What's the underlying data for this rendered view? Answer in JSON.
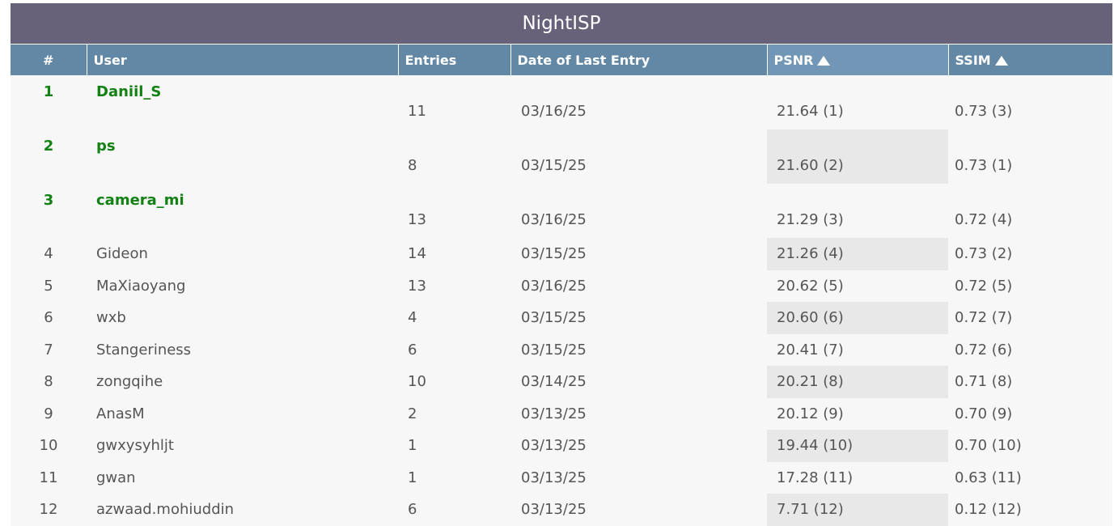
{
  "title": "NightISP",
  "columns": {
    "rank": "#",
    "user": "User",
    "entries": "Entries",
    "date": "Date of Last Entry",
    "psnr": "PSNR",
    "ssim": "SSIM"
  },
  "icons": {
    "sort_psnr": "sort-ascending-triangle-icon",
    "sort_ssim": "sort-ascending-triangle-icon"
  },
  "colors": {
    "title_bar": "#676179",
    "header": "#6388a6",
    "top_rank": "#138113"
  },
  "rows": [
    {
      "rank": "1",
      "user": "Daniil_S",
      "entries": "11",
      "date": "03/16/25",
      "psnr": "21.64 (1)",
      "ssim": "0.73 (3)"
    },
    {
      "rank": "2",
      "user": "ps",
      "entries": "8",
      "date": "03/15/25",
      "psnr": "21.60 (2)",
      "ssim": "0.73 (1)"
    },
    {
      "rank": "3",
      "user": "camera_mi",
      "entries": "13",
      "date": "03/16/25",
      "psnr": "21.29 (3)",
      "ssim": "0.72 (4)"
    },
    {
      "rank": "4",
      "user": "Gideon",
      "entries": "14",
      "date": "03/15/25",
      "psnr": "21.26 (4)",
      "ssim": "0.73 (2)"
    },
    {
      "rank": "5",
      "user": "MaXiaoyang",
      "entries": "13",
      "date": "03/16/25",
      "psnr": "20.62 (5)",
      "ssim": "0.72 (5)"
    },
    {
      "rank": "6",
      "user": "wxb",
      "entries": "4",
      "date": "03/15/25",
      "psnr": "20.60 (6)",
      "ssim": "0.72 (7)"
    },
    {
      "rank": "7",
      "user": "Stangeriness",
      "entries": "6",
      "date": "03/15/25",
      "psnr": "20.41 (7)",
      "ssim": "0.72 (6)"
    },
    {
      "rank": "8",
      "user": "zongqihe",
      "entries": "10",
      "date": "03/14/25",
      "psnr": "20.21 (8)",
      "ssim": "0.71 (8)"
    },
    {
      "rank": "9",
      "user": "AnasM",
      "entries": "2",
      "date": "03/13/25",
      "psnr": "20.12 (9)",
      "ssim": "0.70 (9)"
    },
    {
      "rank": "10",
      "user": "gwxysyhljt",
      "entries": "1",
      "date": "03/13/25",
      "psnr": "19.44 (10)",
      "ssim": "0.70 (10)"
    },
    {
      "rank": "11",
      "user": "gwan",
      "entries": "1",
      "date": "03/13/25",
      "psnr": "17.28 (11)",
      "ssim": "0.63 (11)"
    },
    {
      "rank": "12",
      "user": "azwaad.mohiuddin",
      "entries": "6",
      "date": "03/13/25",
      "psnr": "7.71 (12)",
      "ssim": "0.12 (12)"
    }
  ]
}
